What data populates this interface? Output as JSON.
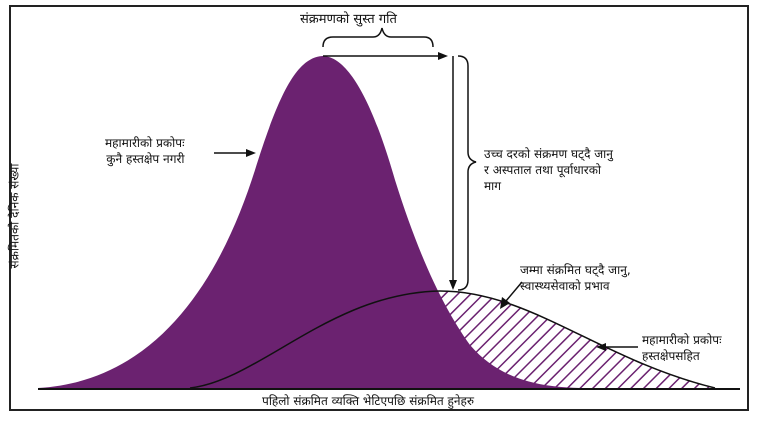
{
  "diagram": {
    "top_label": "संक्रमणको सुस्त गति",
    "left_label_line1": "महामारीको प्रकोपः",
    "left_label_line2": "कुनै हस्तक्षेप नगरी",
    "right_label_line1": "उच्च दरको संक्रमण घट्दै जानु",
    "right_label_line2": "र अस्पताल तथा पूर्वाधारको",
    "right_label_line3": "माग",
    "mid_label_line1": "जम्मा संक्रमित घट्दै जानु,",
    "mid_label_line2": "स्वास्थ्यसेवाको प्रभाव",
    "flat_label_line1": "महामारीको प्रकोपः",
    "flat_label_line2": "हस्तक्षेपसहित",
    "y_axis_label": "संक्रमितको दैनिक संख्या",
    "x_axis_label": "पहिलो संक्रमित व्यक्ति भेटिएपछि संक्रमित हुनेहरु",
    "colors": {
      "peak_fill": "#6b2270",
      "hatch": "#6b2270",
      "line": "#111111"
    }
  }
}
